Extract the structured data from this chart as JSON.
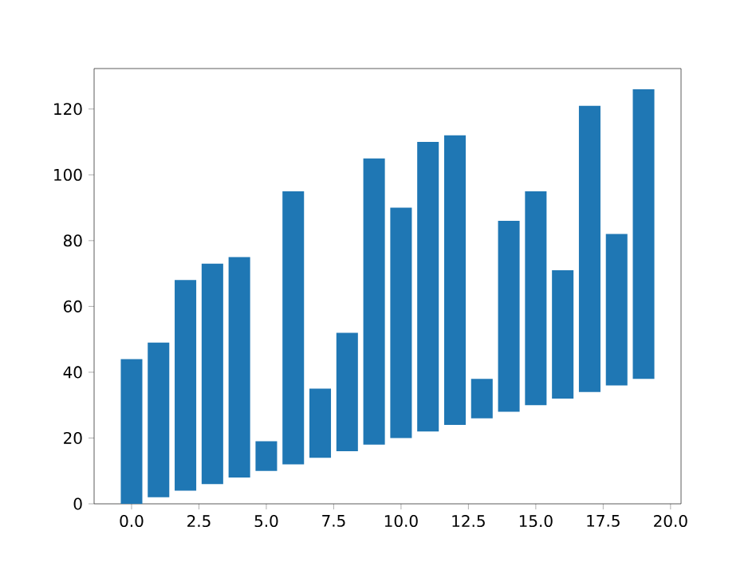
{
  "chart_data": {
    "type": "bar",
    "x": [
      0,
      1,
      2,
      3,
      4,
      5,
      6,
      7,
      8,
      9,
      10,
      11,
      12,
      13,
      14,
      15,
      16,
      17,
      18,
      19
    ],
    "base": [
      0,
      2,
      4,
      6,
      8,
      10,
      12,
      14,
      16,
      18,
      20,
      22,
      24,
      26,
      28,
      30,
      32,
      34,
      36,
      38
    ],
    "values": [
      44,
      47,
      64,
      67,
      67,
      9,
      83,
      21,
      36,
      87,
      70,
      88,
      88,
      12,
      58,
      65,
      39,
      87,
      46,
      88
    ],
    "color": "#1f77b4",
    "xlim": [
      -1.39,
      20.39
    ],
    "ylim": [
      0,
      132.3
    ],
    "xticks": [
      {
        "value": 0,
        "label": "0.0"
      },
      {
        "value": 2.5,
        "label": "2.5"
      },
      {
        "value": 5,
        "label": "5.0"
      },
      {
        "value": 7.5,
        "label": "7.5"
      },
      {
        "value": 10,
        "label": "10.0"
      },
      {
        "value": 12.5,
        "label": "12.5"
      },
      {
        "value": 15,
        "label": "15.0"
      },
      {
        "value": 17.5,
        "label": "17.5"
      },
      {
        "value": 20,
        "label": "20.0"
      }
    ],
    "yticks": [
      0,
      20,
      40,
      60,
      80,
      100,
      120
    ]
  }
}
